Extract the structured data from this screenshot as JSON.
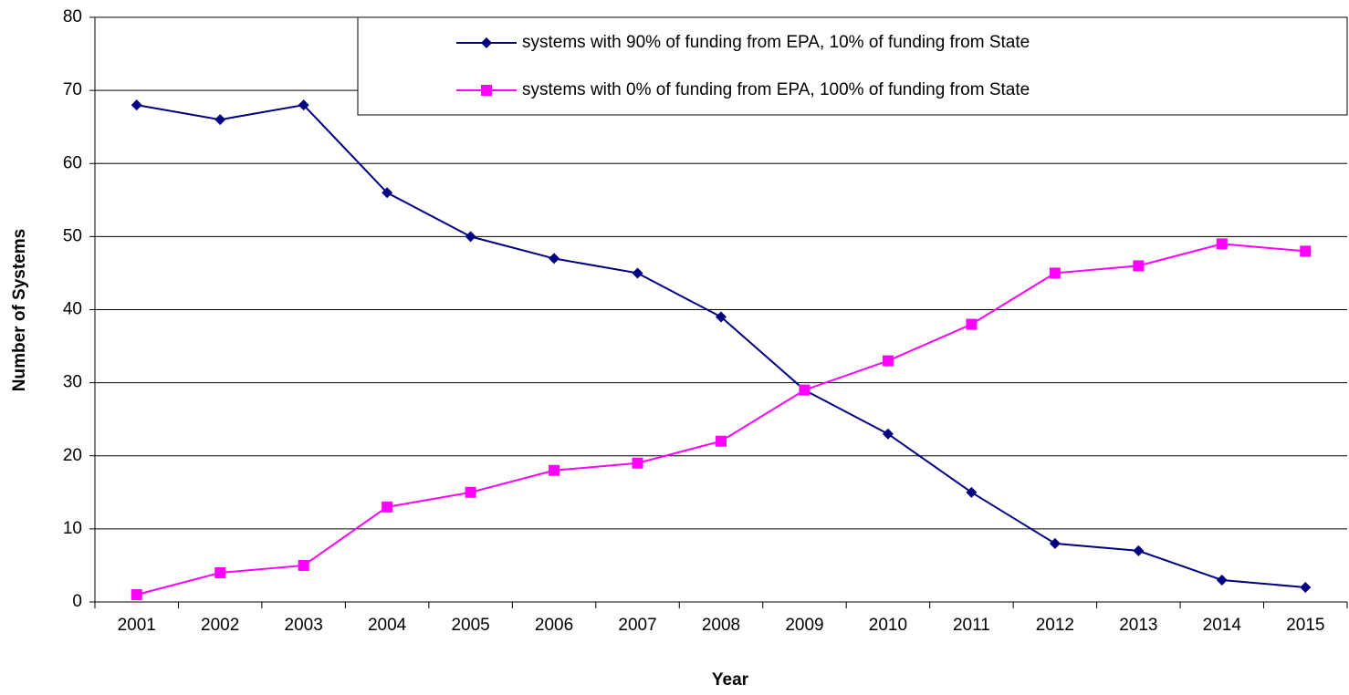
{
  "chart_data": {
    "type": "line",
    "x_label": "Year",
    "y_label": "Number of Systems",
    "categories": [
      "2001",
      "2002",
      "2003",
      "2004",
      "2005",
      "2006",
      "2007",
      "2008",
      "2009",
      "2010",
      "2011",
      "2012",
      "2013",
      "2014",
      "2015"
    ],
    "series": [
      {
        "name": "systems with 90% of funding from EPA, 10% of funding from State",
        "color": "#000080",
        "marker": "diamond",
        "values": [
          68,
          66,
          68,
          56,
          50,
          47,
          45,
          39,
          29,
          23,
          15,
          8,
          7,
          3,
          2
        ]
      },
      {
        "name": "systems with 0% of funding from EPA, 100% of funding from State",
        "color": "#ff00ff",
        "marker": "square",
        "values": [
          1,
          4,
          5,
          13,
          15,
          18,
          19,
          22,
          29,
          33,
          38,
          45,
          46,
          49,
          48
        ]
      }
    ],
    "ylim": [
      0,
      80
    ],
    "yticks": [
      0,
      10,
      20,
      30,
      40,
      50,
      60,
      70,
      80
    ],
    "grid": true,
    "legend": "top-right"
  }
}
